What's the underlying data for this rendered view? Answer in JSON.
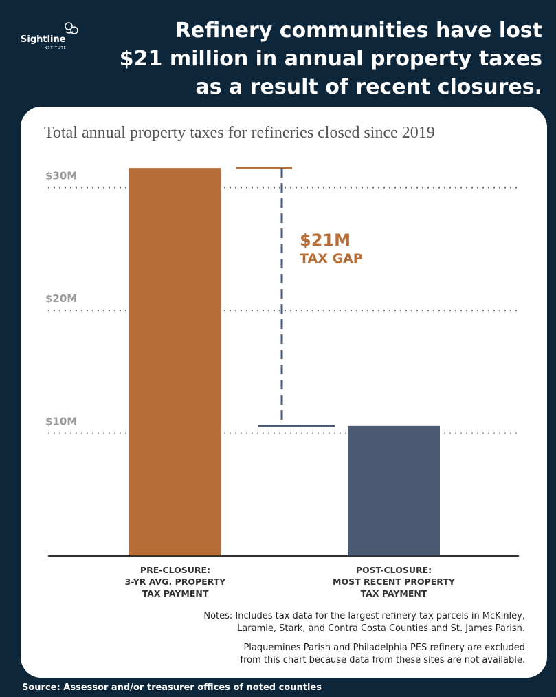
{
  "header": {
    "logo": "Sightline",
    "logo_sub": "INSTITUTE",
    "title": "Refinery communities have lost\n$21 million in annual property taxes\nas a result of recent closures."
  },
  "chart_data": {
    "type": "bar",
    "subtitle": "Total annual property taxes for refineries closed since 2019",
    "categories": [
      "PRE-CLOSURE:\n3-YR AVG. PROPERTY\nTAX PAYMENT",
      "POST-CLOSURE:\nMOST RECENT PROPERTY\nTAX PAYMENT"
    ],
    "values": [
      31.6,
      10.6
    ],
    "colors": [
      "#b76e36",
      "#4a5a73"
    ],
    "ylim": [
      0,
      32
    ],
    "yticks": [
      {
        "value": 10,
        "label": "$10M"
      },
      {
        "value": 20,
        "label": "$20M"
      },
      {
        "value": 30,
        "label": "$30M"
      }
    ],
    "grid": true,
    "annotation": [
      "$21M",
      "TAX GAP"
    ],
    "annotation_color": "#b76e36"
  },
  "notes": [
    "Notes: Includes tax data for the largest refinery tax parcels in McKinley,\nLaramie, Stark, and Contra Costa Counties and St. James Parish.",
    "Plaquemines Parish and Philadelphia PES refinery are excluded\nfrom this chart because data from these sites are not available."
  ],
  "source": "Source: Assessor and/or treasurer offices of noted counties"
}
